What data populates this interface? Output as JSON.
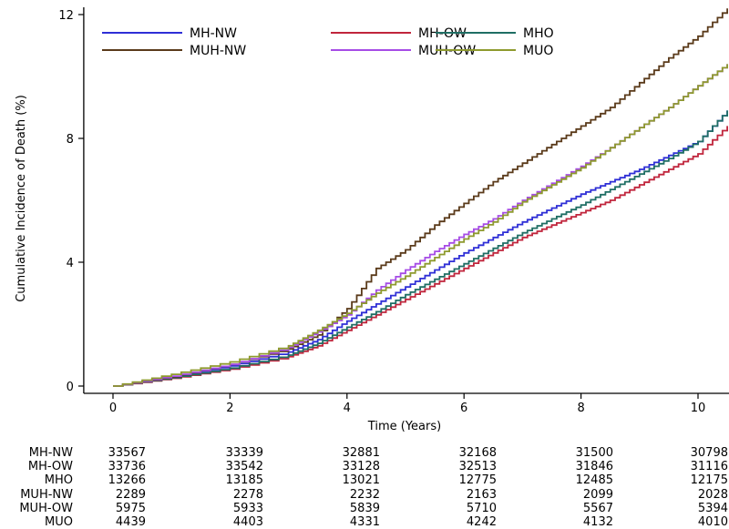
{
  "chart_data": {
    "type": "line",
    "title": "",
    "xlabel": "Time (Years)",
    "ylabel": "Cumulative Incidence of Death (%)",
    "xlim": [
      -0.5,
      10.5
    ],
    "ylim": [
      0,
      12.2
    ],
    "xticks": [
      0,
      2,
      4,
      6,
      8,
      10
    ],
    "yticks": [
      0,
      4,
      8,
      12
    ],
    "legend_position": "top-left",
    "x": [
      0,
      1,
      2,
      3,
      3.5,
      4,
      4.5,
      5,
      5.5,
      6,
      6.5,
      7,
      7.5,
      8,
      8.5,
      9,
      9.5,
      10,
      10.5
    ],
    "series": [
      {
        "name": "MH-NW",
        "color": "#2f2fd6",
        "values": [
          0,
          0.3,
          0.65,
          1.1,
          1.5,
          2.1,
          2.65,
          3.2,
          3.75,
          4.3,
          4.8,
          5.3,
          5.75,
          6.2,
          6.6,
          7.0,
          7.45,
          7.9,
          8.9
        ]
      },
      {
        "name": "MH-OW",
        "color": "#c0253c",
        "values": [
          0,
          0.25,
          0.55,
          0.95,
          1.3,
          1.8,
          2.3,
          2.8,
          3.3,
          3.8,
          4.3,
          4.8,
          5.2,
          5.6,
          6.0,
          6.5,
          7.0,
          7.5,
          8.4
        ]
      },
      {
        "name": "MHO",
        "color": "#1f6e64",
        "values": [
          0,
          0.27,
          0.58,
          1.0,
          1.38,
          1.9,
          2.4,
          2.95,
          3.45,
          3.95,
          4.45,
          4.95,
          5.4,
          5.85,
          6.35,
          6.85,
          7.35,
          7.9,
          8.9
        ]
      },
      {
        "name": "MUH-NW",
        "color": "#5a3a1a",
        "values": [
          0,
          0.3,
          0.7,
          1.2,
          1.65,
          2.5,
          3.8,
          4.4,
          5.2,
          5.9,
          6.6,
          7.2,
          7.8,
          8.4,
          9.0,
          9.8,
          10.6,
          11.3,
          12.2
        ]
      },
      {
        "name": "MUH-OW",
        "color": "#a64ce6",
        "values": [
          0,
          0.32,
          0.7,
          1.25,
          1.75,
          2.3,
          3.1,
          3.75,
          4.35,
          4.9,
          5.4,
          6.0,
          6.55,
          7.1,
          7.7,
          8.35,
          9.0,
          9.7,
          10.4
        ]
      },
      {
        "name": "MUO",
        "color": "#8e9a2e",
        "values": [
          0,
          0.38,
          0.78,
          1.3,
          1.8,
          2.35,
          3.0,
          3.55,
          4.15,
          4.75,
          5.3,
          5.95,
          6.5,
          7.05,
          7.7,
          8.35,
          9.0,
          9.7,
          10.4
        ]
      }
    ]
  },
  "risk_table": {
    "times": [
      0,
      2,
      4,
      6,
      8,
      10
    ],
    "rows": [
      {
        "label": "MH-NW",
        "counts": [
          "33567",
          "33339",
          "32881",
          "32168",
          "31500",
          "30798"
        ]
      },
      {
        "label": "MH-OW",
        "counts": [
          "33736",
          "33542",
          "33128",
          "32513",
          "31846",
          "31116"
        ]
      },
      {
        "label": "MHO",
        "counts": [
          "13266",
          "13185",
          "13021",
          "12775",
          "12485",
          "12175"
        ]
      },
      {
        "label": "MUH-NW",
        "counts": [
          "2289",
          "2278",
          "2232",
          "2163",
          "2099",
          "2028"
        ]
      },
      {
        "label": "MUH-OW",
        "counts": [
          "5975",
          "5933",
          "5839",
          "5710",
          "5567",
          "5394"
        ]
      },
      {
        "label": "MUO",
        "counts": [
          "4439",
          "4403",
          "4331",
          "4242",
          "4132",
          "4010"
        ]
      }
    ]
  }
}
